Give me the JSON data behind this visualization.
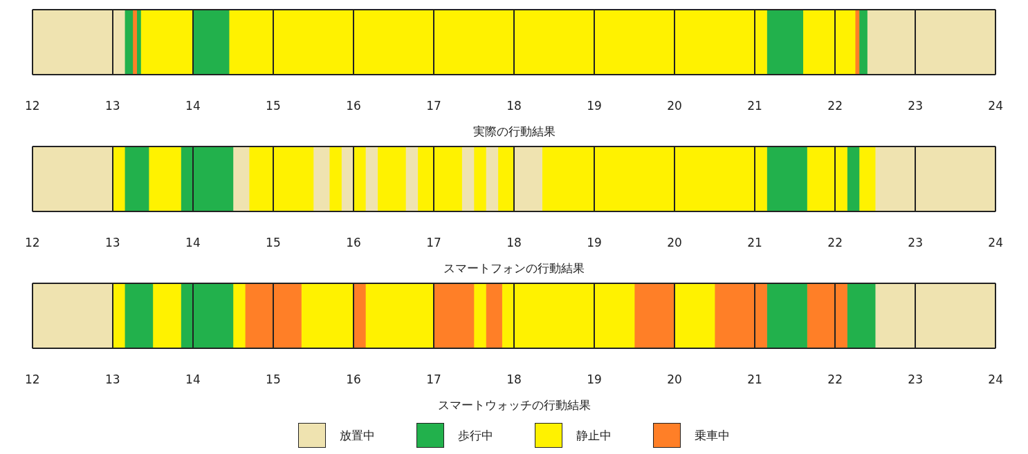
{
  "chart_data": [
    {
      "type": "bar",
      "orientation": "horizontal",
      "xlabel": "実際の行動結果",
      "categories": [
        null
      ],
      "xlim": [
        12,
        24
      ],
      "xticks": [
        12,
        13,
        14,
        15,
        16,
        17,
        18,
        19,
        20,
        21,
        22,
        23,
        24
      ],
      "grid": "x",
      "series": [
        {
          "color": "#efe3b0",
          "values": [
            1.15
          ],
          "base": [
            12
          ]
        },
        {
          "color": "#22b14c",
          "values": [
            0.1
          ],
          "base": [
            13.15
          ]
        },
        {
          "color": "#ff7f27",
          "values": [
            0.05
          ],
          "base": [
            13.25
          ]
        },
        {
          "color": "#22b14c",
          "values": [
            0.05
          ],
          "base": [
            13.3
          ]
        },
        {
          "color": "#fff200",
          "values": [
            0.65
          ],
          "base": [
            13.35
          ]
        },
        {
          "color": "#22b14c",
          "values": [
            0.45
          ],
          "base": [
            14
          ]
        },
        {
          "color": "#fff200",
          "values": [
            6.7
          ],
          "base": [
            14.45
          ]
        },
        {
          "color": "#22b14c",
          "values": [
            0.45
          ],
          "base": [
            21.15
          ]
        },
        {
          "color": "#fff200",
          "values": [
            0.65
          ],
          "base": [
            21.6
          ]
        },
        {
          "color": "#ff7f27",
          "values": [
            0.05
          ],
          "base": [
            22.25
          ]
        },
        {
          "color": "#22b14c",
          "values": [
            0.1
          ],
          "base": [
            22.3
          ]
        },
        {
          "color": "#efe3b0",
          "values": [
            1.6
          ],
          "base": [
            22.4
          ]
        }
      ]
    },
    {
      "type": "bar",
      "orientation": "horizontal",
      "xlabel": "スマートフォンの行動結果",
      "categories": [
        null
      ],
      "xlim": [
        12,
        24
      ],
      "xticks": [
        12,
        13,
        14,
        15,
        16,
        17,
        18,
        19,
        20,
        21,
        22,
        23,
        24
      ],
      "grid": "x",
      "series": [
        {
          "color": "#efe3b0",
          "values": [
            1
          ],
          "base": [
            12
          ]
        },
        {
          "color": "#fff200",
          "values": [
            0.15
          ],
          "base": [
            13
          ]
        },
        {
          "color": "#22b14c",
          "values": [
            0.3
          ],
          "base": [
            13.15
          ]
        },
        {
          "color": "#fff200",
          "values": [
            0.4
          ],
          "base": [
            13.45
          ]
        },
        {
          "color": "#22b14c",
          "values": [
            0.65
          ],
          "base": [
            13.85
          ]
        },
        {
          "color": "#efe3b0",
          "values": [
            0.2
          ],
          "base": [
            14.5
          ]
        },
        {
          "color": "#fff200",
          "values": [
            0.8
          ],
          "base": [
            14.7
          ]
        },
        {
          "color": "#efe3b0",
          "values": [
            0.2
          ],
          "base": [
            15.5
          ]
        },
        {
          "color": "#fff200",
          "values": [
            0.15
          ],
          "base": [
            15.7
          ]
        },
        {
          "color": "#efe3b0",
          "values": [
            0.15
          ],
          "base": [
            15.85
          ]
        },
        {
          "color": "#fff200",
          "values": [
            0.15
          ],
          "base": [
            16
          ]
        },
        {
          "color": "#efe3b0",
          "values": [
            0.15
          ],
          "base": [
            16.15
          ]
        },
        {
          "color": "#fff200",
          "values": [
            0.35
          ],
          "base": [
            16.3
          ]
        },
        {
          "color": "#efe3b0",
          "values": [
            0.15
          ],
          "base": [
            16.65
          ]
        },
        {
          "color": "#fff200",
          "values": [
            0.55
          ],
          "base": [
            16.8
          ]
        },
        {
          "color": "#efe3b0",
          "values": [
            0.15
          ],
          "base": [
            17.35
          ]
        },
        {
          "color": "#fff200",
          "values": [
            0.15
          ],
          "base": [
            17.5
          ]
        },
        {
          "color": "#efe3b0",
          "values": [
            0.15
          ],
          "base": [
            17.65
          ]
        },
        {
          "color": "#fff200",
          "values": [
            0.2
          ],
          "base": [
            17.8
          ]
        },
        {
          "color": "#efe3b0",
          "values": [
            0.35
          ],
          "base": [
            18
          ]
        },
        {
          "color": "#fff200",
          "values": [
            2.8
          ],
          "base": [
            18.35
          ]
        },
        {
          "color": "#22b14c",
          "values": [
            0.5
          ],
          "base": [
            21.15
          ]
        },
        {
          "color": "#fff200",
          "values": [
            0.5
          ],
          "base": [
            21.65
          ]
        },
        {
          "color": "#22b14c",
          "values": [
            0.15
          ],
          "base": [
            22.15
          ]
        },
        {
          "color": "#fff200",
          "values": [
            0.2
          ],
          "base": [
            22.3
          ]
        },
        {
          "color": "#efe3b0",
          "values": [
            1.5
          ],
          "base": [
            22.5
          ]
        }
      ]
    },
    {
      "type": "bar",
      "orientation": "horizontal",
      "xlabel": "スマートウォッチの行動結果",
      "categories": [
        null
      ],
      "xlim": [
        12,
        24
      ],
      "xticks": [
        12,
        13,
        14,
        15,
        16,
        17,
        18,
        19,
        20,
        21,
        22,
        23,
        24
      ],
      "grid": "x",
      "legend": "bottom",
      "series": [
        {
          "name": "放置中",
          "color": "#efe3b0",
          "values": [
            1
          ],
          "base": [
            12
          ]
        },
        {
          "color": "#fff200",
          "values": [
            0.15
          ],
          "base": [
            13
          ]
        },
        {
          "name": "歩行中",
          "color": "#22b14c",
          "values": [
            0.35
          ],
          "base": [
            13.15
          ]
        },
        {
          "name": "静止中",
          "color": "#fff200",
          "values": [
            0.35
          ],
          "base": [
            13.5
          ]
        },
        {
          "color": "#22b14c",
          "values": [
            0.65
          ],
          "base": [
            13.85
          ]
        },
        {
          "color": "#fff200",
          "values": [
            0.15
          ],
          "base": [
            14.5
          ]
        },
        {
          "name": "乗車中",
          "color": "#ff7f27",
          "values": [
            0.7
          ],
          "base": [
            14.65
          ]
        },
        {
          "color": "#fff200",
          "values": [
            0.65
          ],
          "base": [
            15.35
          ]
        },
        {
          "color": "#ff7f27",
          "values": [
            0.15
          ],
          "base": [
            16
          ]
        },
        {
          "color": "#fff200",
          "values": [
            0.85
          ],
          "base": [
            16.15
          ]
        },
        {
          "color": "#ff7f27",
          "values": [
            0.5
          ],
          "base": [
            17
          ]
        },
        {
          "color": "#fff200",
          "values": [
            0.15
          ],
          "base": [
            17.5
          ]
        },
        {
          "color": "#ff7f27",
          "values": [
            0.2
          ],
          "base": [
            17.65
          ]
        },
        {
          "color": "#fff200",
          "values": [
            1.65
          ],
          "base": [
            17.85
          ]
        },
        {
          "color": "#ff7f27",
          "values": [
            0.5
          ],
          "base": [
            19.5
          ]
        },
        {
          "color": "#fff200",
          "values": [
            0.5
          ],
          "base": [
            20
          ]
        },
        {
          "color": "#ff7f27",
          "values": [
            0.65
          ],
          "base": [
            20.5
          ]
        },
        {
          "color": "#22b14c",
          "values": [
            0.5
          ],
          "base": [
            21.15
          ]
        },
        {
          "color": "#ff7f27",
          "values": [
            0.5
          ],
          "base": [
            21.65
          ]
        },
        {
          "color": "#22b14c",
          "values": [
            0.35
          ],
          "base": [
            22.15
          ]
        },
        {
          "color": "#efe3b0",
          "values": [
            1.5
          ],
          "base": [
            22.5
          ]
        }
      ]
    }
  ]
}
